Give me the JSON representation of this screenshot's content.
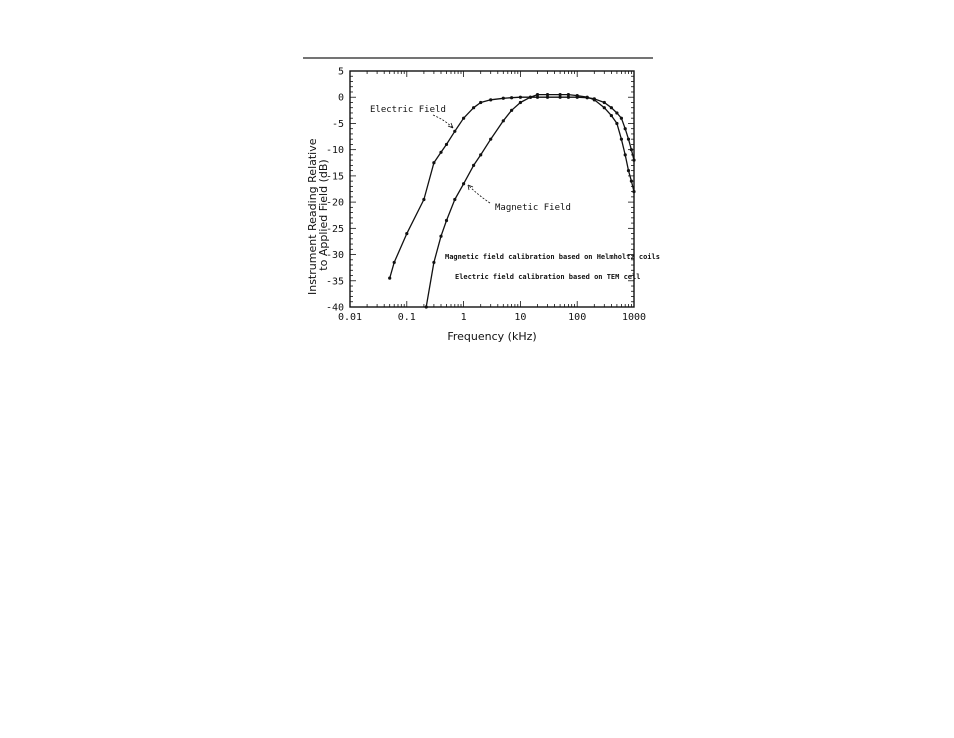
{
  "chart_data": {
    "type": "line",
    "title": "",
    "xlabel": "Frequency (kHz)",
    "ylabel_lines": [
      "Instrument Reading Relative",
      "to Applied Field (dB)"
    ],
    "x_scale": "log",
    "xlim": [
      0.01,
      1000
    ],
    "ylim": [
      -40,
      5
    ],
    "x_ticks": [
      0.01,
      0.1,
      1,
      10,
      100,
      1000
    ],
    "x_tick_labels": [
      "0.01",
      "0.1",
      "1",
      "10",
      "100",
      "1000"
    ],
    "y_ticks": [
      5,
      0,
      -5,
      -10,
      -15,
      -20,
      -25,
      -30,
      -35,
      -40
    ],
    "y_tick_labels": [
      "5",
      "0",
      "-5",
      "-10",
      "-15",
      "-20",
      "-25",
      "-30",
      "-35",
      "-40"
    ],
    "grid": false,
    "series": [
      {
        "name": "Electric Field",
        "x": [
          0.05,
          0.06,
          0.1,
          0.2,
          0.3,
          0.4,
          0.5,
          0.7,
          1,
          1.5,
          2,
          3,
          5,
          7,
          10,
          15,
          20,
          30,
          50,
          70,
          100,
          150,
          200,
          300,
          400,
          500,
          600,
          700,
          800,
          900,
          1000
        ],
        "y": [
          -34.5,
          -31.5,
          -26,
          -19.5,
          -12.5,
          -10.5,
          -9,
          -6.5,
          -4,
          -2,
          -1,
          -0.5,
          -0.2,
          -0.1,
          0,
          0,
          0,
          0,
          0,
          0,
          0,
          -0.1,
          -0.3,
          -1,
          -2,
          -3,
          -4,
          -6,
          -8,
          -10,
          -12
        ]
      },
      {
        "name": "Magnetic Field",
        "x": [
          0.22,
          0.3,
          0.4,
          0.5,
          0.7,
          1,
          1.5,
          2,
          3,
          5,
          7,
          10,
          15,
          20,
          30,
          50,
          70,
          100,
          150,
          200,
          300,
          400,
          500,
          600,
          700,
          800,
          900,
          1000
        ],
        "y": [
          -40,
          -31.5,
          -26.5,
          -23.5,
          -19.5,
          -16.5,
          -13,
          -11,
          -8,
          -4.5,
          -2.5,
          -1,
          0,
          0.5,
          0.5,
          0.5,
          0.5,
          0.3,
          0,
          -0.5,
          -2,
          -3.5,
          -5,
          -8,
          -11,
          -14,
          -16,
          -18
        ]
      }
    ],
    "annotations": [
      {
        "text": "Electric Field",
        "points_to": "Electric Field"
      },
      {
        "text": "Magnetic Field",
        "points_to": "Magnetic Field"
      },
      {
        "text": "Magnetic field calibration based on Helmholtz coils"
      },
      {
        "text": "Electric field calibration based on TEM cell"
      }
    ]
  }
}
